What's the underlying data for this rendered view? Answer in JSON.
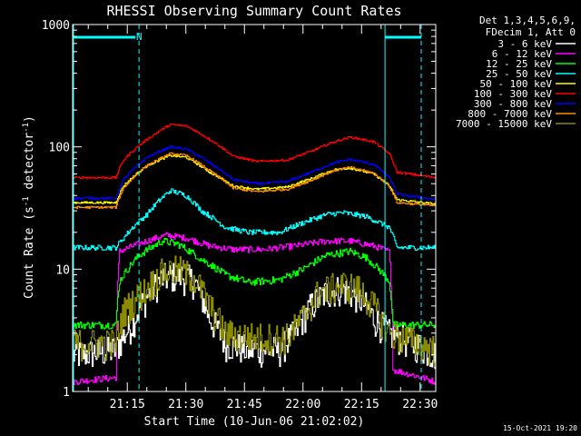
{
  "chart_data": {
    "type": "line",
    "title": "RHESSI Observing Summary Count Rates",
    "xlabel": "Start Time (10-Jun-06 21:02:02)",
    "ylabel_main": "Count Rate (s",
    "ylabel_sup1": "-1",
    "ylabel_mid": " detector",
    "ylabel_sup2": "-1",
    "ylabel_end": ")",
    "yscale": "log",
    "ylim": [
      1,
      1000
    ],
    "xlim_minutes": [
      1.0,
      94.0
    ],
    "x_ticks": [
      {
        "m": 15,
        "label": "21:15"
      },
      {
        "m": 30,
        "label": "21:30"
      },
      {
        "m": 45,
        "label": "21:45"
      },
      {
        "m": 60,
        "label": "22:00"
      },
      {
        "m": 75,
        "label": "22:15"
      },
      {
        "m": 90,
        "label": "22:30"
      }
    ],
    "y_ticks": [
      {
        "v": 1,
        "label": "1"
      },
      {
        "v": 10,
        "label": "10"
      },
      {
        "v": 100,
        "label": "100"
      },
      {
        "v": 1000,
        "label": "1000"
      }
    ],
    "legend_header": [
      "Det 1,3,4,5,6,9,",
      "FDecim 1, Att 0"
    ],
    "legend_position": "top-right",
    "night_marker": "N",
    "day_boundaries_minutes": [
      18.0,
      81.0
    ],
    "timestamp": "15-Oct-2021 19:20",
    "series": [
      {
        "name": "3 - 6 keV",
        "color": "#ffffff",
        "noise": 0.3,
        "points": [
          [
            1,
            2.0
          ],
          [
            12,
            2.2
          ],
          [
            16,
            3.5
          ],
          [
            20,
            6
          ],
          [
            24,
            8.5
          ],
          [
            28,
            9
          ],
          [
            32,
            8
          ],
          [
            36,
            4
          ],
          [
            40,
            2.5
          ],
          [
            46,
            2.2
          ],
          [
            54,
            2.2
          ],
          [
            58,
            3
          ],
          [
            62,
            5
          ],
          [
            66,
            6.5
          ],
          [
            70,
            7
          ],
          [
            74,
            6
          ],
          [
            78,
            4
          ],
          [
            82,
            3
          ],
          [
            94,
            2.0
          ]
        ]
      },
      {
        "name": "6 - 12 keV",
        "color": "#ff00ff",
        "noise": 0.06,
        "points": [
          [
            1,
            1.2
          ],
          [
            12,
            1.3
          ],
          [
            13,
            14
          ],
          [
            20,
            17
          ],
          [
            25,
            19
          ],
          [
            30,
            18
          ],
          [
            36,
            15.5
          ],
          [
            42,
            14.5
          ],
          [
            50,
            14.5
          ],
          [
            58,
            15.5
          ],
          [
            66,
            17
          ],
          [
            72,
            17
          ],
          [
            78,
            15.5
          ],
          [
            82,
            14
          ],
          [
            83,
            1.5
          ],
          [
            94,
            1.2
          ]
        ]
      },
      {
        "name": "12 - 25 keV",
        "color": "#00ff00",
        "noise": 0.07,
        "points": [
          [
            1,
            3.5
          ],
          [
            12,
            3.5
          ],
          [
            13,
            8
          ],
          [
            18,
            13
          ],
          [
            24,
            17
          ],
          [
            28,
            16
          ],
          [
            34,
            12
          ],
          [
            40,
            9
          ],
          [
            46,
            7.8
          ],
          [
            54,
            8.2
          ],
          [
            60,
            10
          ],
          [
            66,
            13
          ],
          [
            72,
            14
          ],
          [
            76,
            12.5
          ],
          [
            80,
            9.5
          ],
          [
            82,
            8
          ],
          [
            83,
            3.5
          ],
          [
            94,
            3.5
          ]
        ]
      },
      {
        "name": "25 - 50 keV",
        "color": "#00ffff",
        "noise": 0.05,
        "points": [
          [
            1,
            15
          ],
          [
            12,
            15
          ],
          [
            14,
            18
          ],
          [
            20,
            28
          ],
          [
            26,
            44
          ],
          [
            30,
            40
          ],
          [
            34,
            30
          ],
          [
            40,
            22
          ],
          [
            46,
            20
          ],
          [
            54,
            20
          ],
          [
            60,
            24
          ],
          [
            66,
            28
          ],
          [
            70,
            29
          ],
          [
            76,
            27
          ],
          [
            82,
            22
          ],
          [
            84,
            15
          ],
          [
            94,
            15
          ]
        ]
      },
      {
        "name": "50 - 100 keV",
        "color": "#ffff00",
        "noise": 0.02,
        "points": [
          [
            1,
            35
          ],
          [
            12,
            35
          ],
          [
            14,
            48
          ],
          [
            20,
            70
          ],
          [
            26,
            85
          ],
          [
            30,
            82
          ],
          [
            36,
            62
          ],
          [
            42,
            48
          ],
          [
            48,
            45
          ],
          [
            56,
            47
          ],
          [
            62,
            55
          ],
          [
            68,
            65
          ],
          [
            72,
            67
          ],
          [
            78,
            60
          ],
          [
            82,
            48
          ],
          [
            84,
            37
          ],
          [
            94,
            34
          ]
        ]
      },
      {
        "name": "100 - 300 keV",
        "color": "#ff0000",
        "noise": 0.02,
        "points": [
          [
            1,
            56
          ],
          [
            12,
            56
          ],
          [
            14,
            78
          ],
          [
            20,
            115
          ],
          [
            26,
            152
          ],
          [
            30,
            148
          ],
          [
            36,
            115
          ],
          [
            42,
            84
          ],
          [
            48,
            76
          ],
          [
            56,
            78
          ],
          [
            62,
            92
          ],
          [
            68,
            110
          ],
          [
            72,
            120
          ],
          [
            78,
            110
          ],
          [
            82,
            88
          ],
          [
            84,
            62
          ],
          [
            94,
            56
          ]
        ]
      },
      {
        "name": "300 - 800 keV",
        "color": "#0000ff",
        "noise": 0.02,
        "points": [
          [
            1,
            38
          ],
          [
            12,
            38
          ],
          [
            14,
            54
          ],
          [
            20,
            82
          ],
          [
            26,
            100
          ],
          [
            30,
            96
          ],
          [
            36,
            74
          ],
          [
            42,
            54
          ],
          [
            48,
            50
          ],
          [
            56,
            52
          ],
          [
            62,
            62
          ],
          [
            68,
            74
          ],
          [
            72,
            79
          ],
          [
            78,
            72
          ],
          [
            82,
            56
          ],
          [
            84,
            41
          ],
          [
            94,
            37
          ]
        ]
      },
      {
        "name": "800 - 7000 keV",
        "color": "#ff8c00",
        "noise": 0.02,
        "points": [
          [
            1,
            32
          ],
          [
            12,
            32
          ],
          [
            14,
            46
          ],
          [
            20,
            70
          ],
          [
            26,
            88
          ],
          [
            30,
            85
          ],
          [
            36,
            64
          ],
          [
            42,
            46
          ],
          [
            48,
            43
          ],
          [
            56,
            45
          ],
          [
            62,
            53
          ],
          [
            68,
            64
          ],
          [
            72,
            68
          ],
          [
            78,
            61
          ],
          [
            82,
            48
          ],
          [
            84,
            35
          ],
          [
            94,
            33
          ]
        ]
      },
      {
        "name": "7000 - 15000 keV",
        "color": "#8b8b00",
        "noise": 0.3,
        "points": [
          [
            1,
            2.5
          ],
          [
            12,
            2.5
          ],
          [
            14,
            4.5
          ],
          [
            20,
            7
          ],
          [
            24,
            9.5
          ],
          [
            28,
            10
          ],
          [
            32,
            8.5
          ],
          [
            36,
            5
          ],
          [
            40,
            3
          ],
          [
            48,
            2.8
          ],
          [
            56,
            2.8
          ],
          [
            60,
            4
          ],
          [
            64,
            6.5
          ],
          [
            70,
            7.5
          ],
          [
            74,
            7
          ],
          [
            78,
            5
          ],
          [
            82,
            3
          ],
          [
            94,
            2.2
          ]
        ]
      }
    ]
  }
}
